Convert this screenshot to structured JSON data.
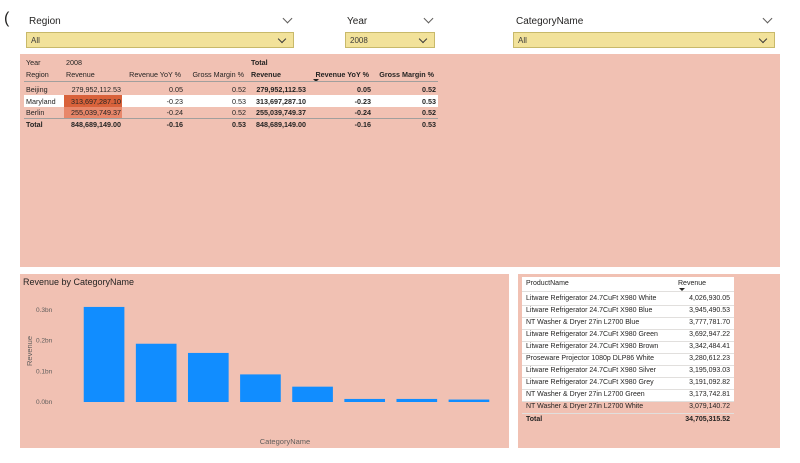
{
  "page_marker": "(",
  "slicers": {
    "region": {
      "label": "Region",
      "value": "All"
    },
    "year": {
      "label": "Year",
      "value": "2008"
    },
    "category": {
      "label": "CategoryName",
      "value": "All"
    }
  },
  "matrix": {
    "year_header": "Year",
    "year_value": "2008",
    "total_header": "Total",
    "row_header": "Region",
    "columns": [
      "Revenue",
      "Revenue YoY %",
      "Gross Margin %",
      "Revenue",
      "Revenue YoY %",
      "Gross Margin %"
    ],
    "rows": [
      {
        "region": "Beijing",
        "values": [
          "279,952,112.53",
          "0.05",
          "0.52",
          "279,952,112.53",
          "0.05",
          "0.52"
        ]
      },
      {
        "region": "Maryland",
        "values": [
          "313,697,287.10",
          "-0.23",
          "0.53",
          "313,697,287.10",
          "-0.23",
          "0.53"
        ]
      },
      {
        "region": "Berlin",
        "values": [
          "255,039,749.37",
          "-0.24",
          "0.52",
          "255,039,749.37",
          "-0.24",
          "0.52"
        ]
      }
    ],
    "total": {
      "label": "Total",
      "values": [
        "848,689,149.00",
        "-0.16",
        "0.53",
        "848,689,149.00",
        "-0.16",
        "0.53"
      ]
    }
  },
  "chart": {
    "title": "Revenue by CategoryName",
    "bar_color": "#118dff"
  },
  "chart_data": {
    "type": "bar",
    "title": "Revenue by CategoryName",
    "xlabel": "CategoryName",
    "ylabel": "Revenue",
    "categories": [
      "",
      "",
      "",
      "",
      "",
      "",
      "",
      ""
    ],
    "values": [
      0.31,
      0.19,
      0.16,
      0.09,
      0.05,
      0.01,
      0.01,
      0.008
    ],
    "y_unit": "bn",
    "yticks": [
      "0.0bn",
      "0.1bn",
      "0.2bn",
      "0.3bn"
    ],
    "ylim": [
      0,
      0.3
    ],
    "grid": false
  },
  "product_table": {
    "headers": [
      "ProductName",
      "Revenue"
    ],
    "rows": [
      [
        "Litware Refrigerator 24.7CuFt X980 White",
        "4,026,930.05"
      ],
      [
        "Litware Refrigerator 24.7CuFt X980 Blue",
        "3,945,490.53"
      ],
      [
        "NT Washer & Dryer 27in L2700 Blue",
        "3,777,781.70"
      ],
      [
        "Litware Refrigerator 24.7CuFt X980 Green",
        "3,692,947.22"
      ],
      [
        "Litware Refrigerator 24.7CuFt X980 Brown",
        "3,342,484.41"
      ],
      [
        "Proseware Projector 1080p DLP86 White",
        "3,280,612.23"
      ],
      [
        "Litware Refrigerator 24.7CuFt X980 Silver",
        "3,195,093.03"
      ],
      [
        "Litware Refrigerator 24.7CuFt X980 Grey",
        "3,191,092.82"
      ],
      [
        "NT Washer & Dryer 27in L2700 Green",
        "3,173,742.81"
      ],
      [
        "NT Washer & Dryer 27in L2700 White",
        "3,079,140.72"
      ]
    ],
    "total_label": "Total",
    "total_value": "34,705,315.52"
  },
  "colors": {
    "panel_bg": "#f1c1b3",
    "slicer_bg": "#f2e29a",
    "highlight_dark": "#d9623b",
    "highlight_light": "#e8876a"
  }
}
